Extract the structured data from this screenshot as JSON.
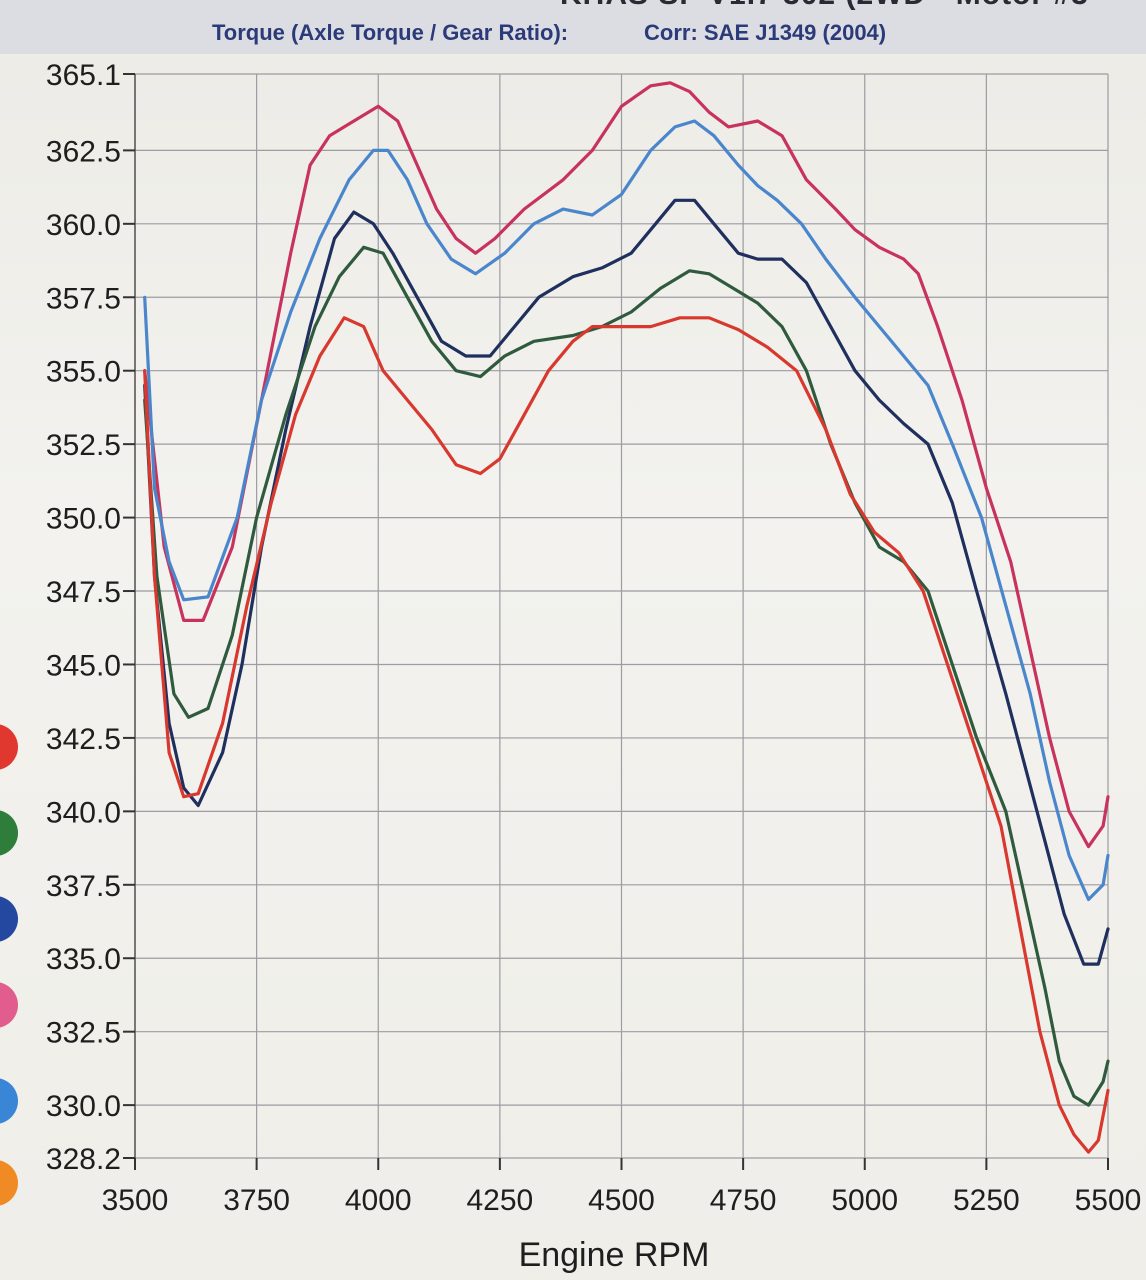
{
  "header": {
    "top_cut_text": "KHAS SF V1.7 302 (2WD - Motor #3",
    "subtitle_left": "Torque (Axle Torque / Gear Ratio):",
    "subtitle_right": "Corr: SAE J1349 (2004)"
  },
  "legend_dots": [
    {
      "color": "#e0382f"
    },
    {
      "color": "#2e7d3a"
    },
    {
      "color": "#2448a0"
    },
    {
      "color": "#e05d8e"
    },
    {
      "color": "#3a86d6"
    },
    {
      "color": "#f08a24"
    }
  ],
  "chart_data": {
    "type": "line",
    "xlabel": "Engine RPM",
    "ylabel": "",
    "xlim": [
      3500,
      5500
    ],
    "ylim": [
      328.2,
      365.1
    ],
    "x_ticks": [
      "3500",
      "3750",
      "4000",
      "4250",
      "4500",
      "4750",
      "5000",
      "5250",
      "5500"
    ],
    "y_ticks": [
      "365.1",
      "362.5",
      "360.0",
      "357.5",
      "355.0",
      "352.5",
      "350.0",
      "347.5",
      "345.0",
      "342.5",
      "340.0",
      "337.5",
      "335.0",
      "332.5",
      "330.0",
      "328.2"
    ],
    "grid": true,
    "series": [
      {
        "color": "#c8335e",
        "points": [
          [
            3520,
            355
          ],
          [
            3560,
            349
          ],
          [
            3600,
            346.5
          ],
          [
            3640,
            346.5
          ],
          [
            3700,
            349
          ],
          [
            3760,
            354
          ],
          [
            3820,
            359
          ],
          [
            3860,
            362
          ],
          [
            3900,
            363
          ],
          [
            3950,
            363.5
          ],
          [
            4000,
            364
          ],
          [
            4040,
            363.5
          ],
          [
            4080,
            362
          ],
          [
            4120,
            360.5
          ],
          [
            4160,
            359.5
          ],
          [
            4200,
            359
          ],
          [
            4240,
            359.5
          ],
          [
            4300,
            360.5
          ],
          [
            4380,
            361.5
          ],
          [
            4440,
            362.5
          ],
          [
            4500,
            364
          ],
          [
            4560,
            364.7
          ],
          [
            4600,
            364.8
          ],
          [
            4640,
            364.5
          ],
          [
            4680,
            363.8
          ],
          [
            4720,
            363.3
          ],
          [
            4780,
            363.5
          ],
          [
            4830,
            363
          ],
          [
            4880,
            361.5
          ],
          [
            4940,
            360.5
          ],
          [
            4980,
            359.8
          ],
          [
            5030,
            359.2
          ],
          [
            5080,
            358.8
          ],
          [
            5110,
            358.3
          ],
          [
            5150,
            356.5
          ],
          [
            5200,
            354
          ],
          [
            5250,
            351
          ],
          [
            5300,
            348.5
          ],
          [
            5340,
            345.5
          ],
          [
            5380,
            342.5
          ],
          [
            5420,
            340
          ],
          [
            5460,
            338.8
          ],
          [
            5490,
            339.5
          ],
          [
            5500,
            340.5
          ]
        ]
      },
      {
        "color": "#4a86cc",
        "points": [
          [
            3520,
            357.5
          ],
          [
            3540,
            351
          ],
          [
            3570,
            348.5
          ],
          [
            3600,
            347.2
          ],
          [
            3650,
            347.3
          ],
          [
            3710,
            350
          ],
          [
            3760,
            354
          ],
          [
            3820,
            357
          ],
          [
            3880,
            359.5
          ],
          [
            3940,
            361.5
          ],
          [
            3990,
            362.5
          ],
          [
            4020,
            362.5
          ],
          [
            4060,
            361.5
          ],
          [
            4100,
            360
          ],
          [
            4150,
            358.8
          ],
          [
            4200,
            358.3
          ],
          [
            4260,
            359
          ],
          [
            4320,
            360
          ],
          [
            4380,
            360.5
          ],
          [
            4440,
            360.3
          ],
          [
            4500,
            361
          ],
          [
            4560,
            362.5
          ],
          [
            4610,
            363.3
          ],
          [
            4650,
            363.5
          ],
          [
            4690,
            363
          ],
          [
            4740,
            362
          ],
          [
            4780,
            361.3
          ],
          [
            4820,
            360.8
          ],
          [
            4870,
            360
          ],
          [
            4920,
            358.8
          ],
          [
            4980,
            357.5
          ],
          [
            5030,
            356.5
          ],
          [
            5080,
            355.5
          ],
          [
            5130,
            354.5
          ],
          [
            5180,
            352.5
          ],
          [
            5240,
            350
          ],
          [
            5290,
            347
          ],
          [
            5340,
            344
          ],
          [
            5380,
            341
          ],
          [
            5420,
            338.5
          ],
          [
            5460,
            337
          ],
          [
            5490,
            337.5
          ],
          [
            5500,
            338.5
          ]
        ]
      },
      {
        "color": "#1f2f5e",
        "points": [
          [
            3520,
            354.5
          ],
          [
            3540,
            348
          ],
          [
            3570,
            343
          ],
          [
            3600,
            340.8
          ],
          [
            3630,
            340.2
          ],
          [
            3680,
            342
          ],
          [
            3720,
            345
          ],
          [
            3760,
            349
          ],
          [
            3810,
            353
          ],
          [
            3860,
            356.5
          ],
          [
            3910,
            359.5
          ],
          [
            3950,
            360.4
          ],
          [
            3990,
            360
          ],
          [
            4030,
            359
          ],
          [
            4080,
            357.5
          ],
          [
            4130,
            356
          ],
          [
            4180,
            355.5
          ],
          [
            4230,
            355.5
          ],
          [
            4280,
            356.5
          ],
          [
            4330,
            357.5
          ],
          [
            4400,
            358.2
          ],
          [
            4460,
            358.5
          ],
          [
            4520,
            359
          ],
          [
            4570,
            360
          ],
          [
            4610,
            360.8
          ],
          [
            4650,
            360.8
          ],
          [
            4690,
            360
          ],
          [
            4740,
            359
          ],
          [
            4780,
            358.8
          ],
          [
            4830,
            358.8
          ],
          [
            4880,
            358
          ],
          [
            4930,
            356.5
          ],
          [
            4980,
            355
          ],
          [
            5030,
            354
          ],
          [
            5080,
            353.2
          ],
          [
            5130,
            352.5
          ],
          [
            5180,
            350.5
          ],
          [
            5230,
            347.5
          ],
          [
            5290,
            344
          ],
          [
            5330,
            341.5
          ],
          [
            5370,
            339
          ],
          [
            5410,
            336.5
          ],
          [
            5450,
            334.8
          ],
          [
            5480,
            334.8
          ],
          [
            5500,
            336
          ]
        ]
      },
      {
        "color": "#2f5a3e",
        "points": [
          [
            3520,
            354
          ],
          [
            3545,
            348
          ],
          [
            3580,
            344
          ],
          [
            3610,
            343.2
          ],
          [
            3650,
            343.5
          ],
          [
            3700,
            346
          ],
          [
            3750,
            350
          ],
          [
            3810,
            353.5
          ],
          [
            3870,
            356.5
          ],
          [
            3920,
            358.2
          ],
          [
            3970,
            359.2
          ],
          [
            4010,
            359
          ],
          [
            4060,
            357.5
          ],
          [
            4110,
            356
          ],
          [
            4160,
            355
          ],
          [
            4210,
            354.8
          ],
          [
            4260,
            355.5
          ],
          [
            4320,
            356
          ],
          [
            4400,
            356.2
          ],
          [
            4460,
            356.5
          ],
          [
            4520,
            357
          ],
          [
            4580,
            357.8
          ],
          [
            4640,
            358.4
          ],
          [
            4680,
            358.3
          ],
          [
            4730,
            357.8
          ],
          [
            4780,
            357.3
          ],
          [
            4830,
            356.5
          ],
          [
            4880,
            355
          ],
          [
            4930,
            352.5
          ],
          [
            4980,
            350.5
          ],
          [
            5030,
            349
          ],
          [
            5080,
            348.5
          ],
          [
            5130,
            347.5
          ],
          [
            5180,
            345
          ],
          [
            5230,
            342.5
          ],
          [
            5290,
            340
          ],
          [
            5330,
            337
          ],
          [
            5370,
            334
          ],
          [
            5400,
            331.5
          ],
          [
            5430,
            330.3
          ],
          [
            5460,
            330
          ],
          [
            5490,
            330.8
          ],
          [
            5500,
            331.5
          ]
        ]
      },
      {
        "color": "#d8382e",
        "points": [
          [
            3520,
            355
          ],
          [
            3540,
            348
          ],
          [
            3570,
            342
          ],
          [
            3600,
            340.5
          ],
          [
            3630,
            340.6
          ],
          [
            3680,
            343
          ],
          [
            3730,
            347
          ],
          [
            3780,
            350.5
          ],
          [
            3830,
            353.5
          ],
          [
            3880,
            355.5
          ],
          [
            3930,
            356.8
          ],
          [
            3970,
            356.5
          ],
          [
            4010,
            355
          ],
          [
            4060,
            354
          ],
          [
            4110,
            353
          ],
          [
            4160,
            351.8
          ],
          [
            4210,
            351.5
          ],
          [
            4250,
            352
          ],
          [
            4300,
            353.5
          ],
          [
            4350,
            355
          ],
          [
            4400,
            356
          ],
          [
            4440,
            356.5
          ],
          [
            4500,
            356.5
          ],
          [
            4560,
            356.5
          ],
          [
            4620,
            356.8
          ],
          [
            4680,
            356.8
          ],
          [
            4740,
            356.4
          ],
          [
            4800,
            355.8
          ],
          [
            4860,
            355
          ],
          [
            4920,
            353
          ],
          [
            4970,
            350.8
          ],
          [
            5020,
            349.5
          ],
          [
            5070,
            348.8
          ],
          [
            5120,
            347.5
          ],
          [
            5170,
            345
          ],
          [
            5220,
            342.5
          ],
          [
            5280,
            339.5
          ],
          [
            5320,
            336
          ],
          [
            5360,
            332.5
          ],
          [
            5400,
            330
          ],
          [
            5430,
            329
          ],
          [
            5460,
            328.4
          ],
          [
            5480,
            328.8
          ],
          [
            5500,
            330.5
          ]
        ]
      }
    ]
  }
}
